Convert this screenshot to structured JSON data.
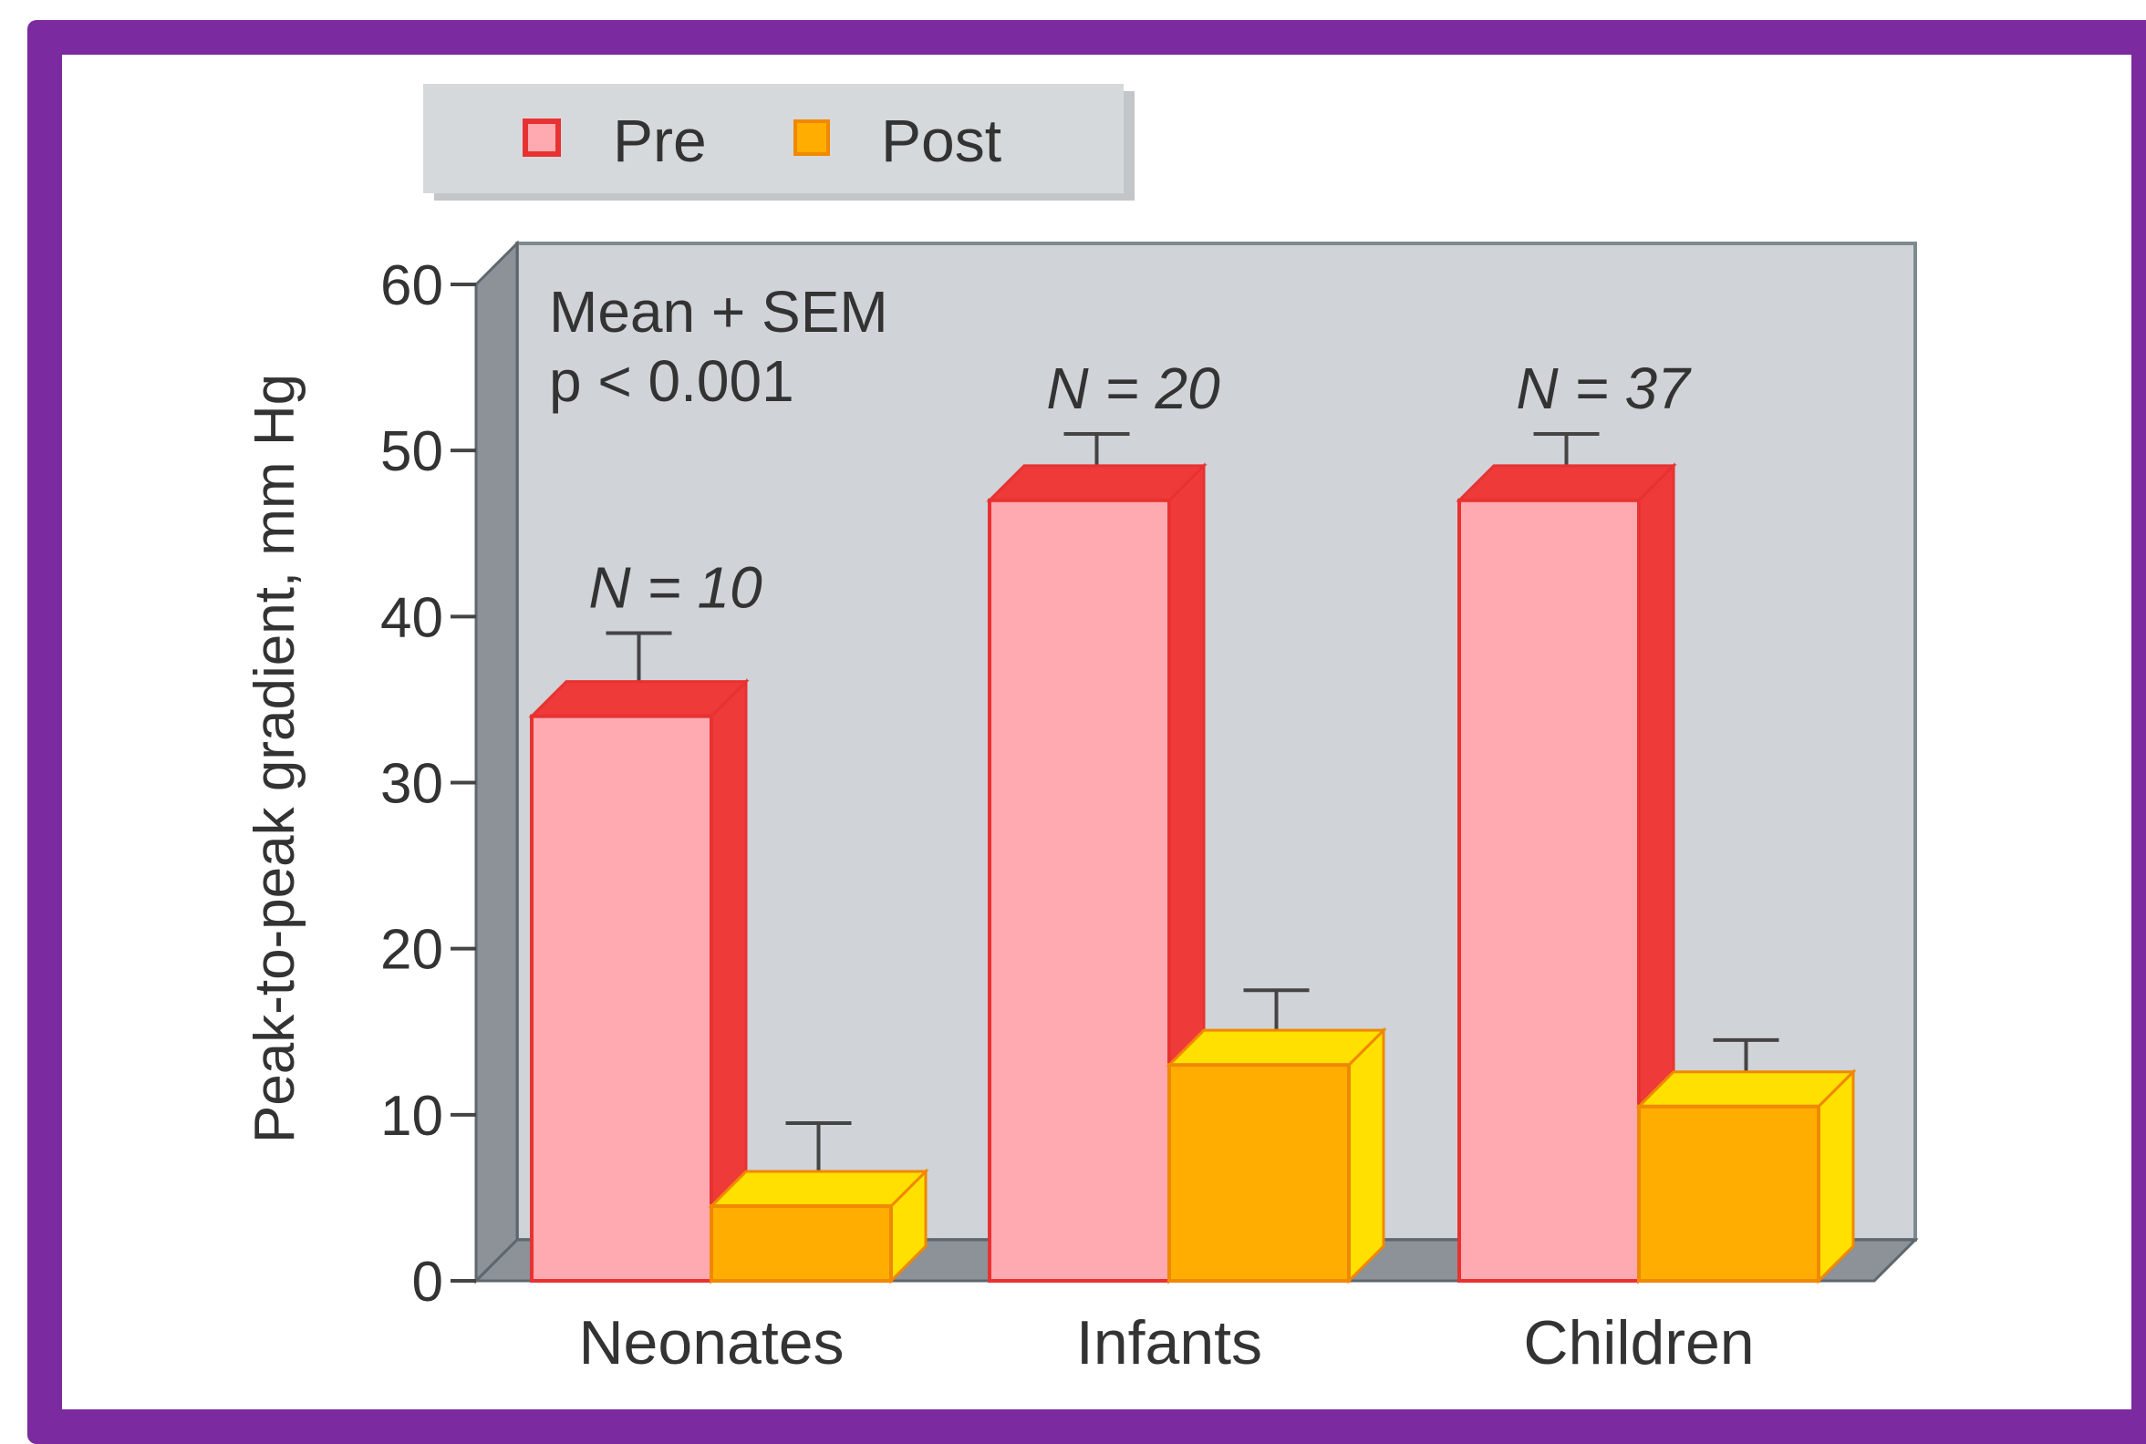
{
  "chart_data": {
    "type": "bar",
    "title": "",
    "xlabel": "",
    "ylabel": "Peak-to-peak gradient, mm Hg",
    "ylim": [
      0,
      60
    ],
    "yticks": [
      0,
      10,
      20,
      30,
      40,
      50,
      60
    ],
    "categories": [
      "Neonates",
      "Infants",
      "Children"
    ],
    "series": [
      {
        "name": "Pre",
        "values": [
          34,
          47,
          47
        ],
        "errors": [
          5,
          4,
          4
        ],
        "color": "#ffaab0",
        "side_color": "#ef3a3a",
        "edge_color": "#e83232"
      },
      {
        "name": "Post",
        "values": [
          4.5,
          13,
          10.5
        ],
        "errors": [
          5,
          4.5,
          4
        ],
        "color": "#ffae00",
        "side_color": "#ffe000",
        "edge_color": "#f08800"
      }
    ],
    "sample_sizes": [
      "N = 10",
      "N = 20",
      "N = 37"
    ],
    "annotations": [
      "Mean + SEM",
      "p < 0.001"
    ],
    "legend_position": "top-left",
    "grid": false
  }
}
